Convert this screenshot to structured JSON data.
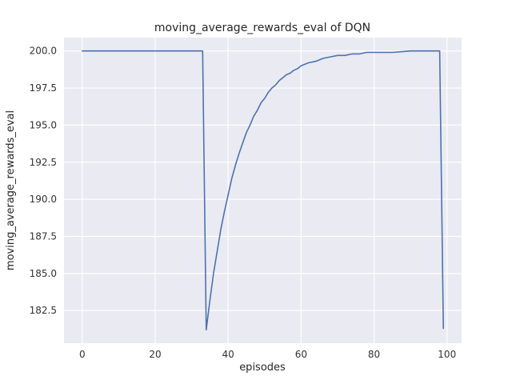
{
  "chart_data": {
    "type": "line",
    "title": "moving_average_rewards_eval of DQN",
    "xlabel": "episodes",
    "ylabel": "moving_average_rewards_eval",
    "xlim": [
      -5,
      104
    ],
    "ylim": [
      180.3,
      200.9
    ],
    "xticks": [
      0,
      20,
      40,
      60,
      80,
      100
    ],
    "xticklabels": [
      "0",
      "20",
      "40",
      "60",
      "80",
      "100"
    ],
    "yticks": [
      182.5,
      185.0,
      187.5,
      190.0,
      192.5,
      195.0,
      197.5,
      200.0
    ],
    "yticklabels": [
      "182.5",
      "185.0",
      "187.5",
      "190.0",
      "192.5",
      "195.0",
      "197.5",
      "200.0"
    ],
    "grid": true,
    "legend": "none",
    "colors": {
      "line": "#4c72b0",
      "plot_background": "#eaeaf2",
      "figure_background": "#ffffff",
      "grid": "#ffffff",
      "text": "#262626"
    },
    "series": [
      {
        "name": "DQN",
        "points": [
          [
            0,
            200.0
          ],
          [
            33,
            200.0
          ],
          [
            34,
            181.2
          ],
          [
            35,
            183.2
          ],
          [
            36,
            185.0
          ],
          [
            37,
            186.5
          ],
          [
            38,
            188.0
          ],
          [
            39,
            189.2
          ],
          [
            40,
            190.3
          ],
          [
            41,
            191.4
          ],
          [
            42,
            192.3
          ],
          [
            43,
            193.1
          ],
          [
            44,
            193.8
          ],
          [
            45,
            194.5
          ],
          [
            46,
            195.0
          ],
          [
            47,
            195.6
          ],
          [
            48,
            196.0
          ],
          [
            49,
            196.5
          ],
          [
            50,
            196.8
          ],
          [
            51,
            197.2
          ],
          [
            52,
            197.5
          ],
          [
            53,
            197.7
          ],
          [
            54,
            198.0
          ],
          [
            55,
            198.2
          ],
          [
            56,
            198.4
          ],
          [
            57,
            198.5
          ],
          [
            58,
            198.7
          ],
          [
            59,
            198.8
          ],
          [
            60,
            199.0
          ],
          [
            62,
            199.2
          ],
          [
            64,
            199.3
          ],
          [
            66,
            199.5
          ],
          [
            68,
            199.6
          ],
          [
            70,
            199.7
          ],
          [
            72,
            199.7
          ],
          [
            74,
            199.8
          ],
          [
            76,
            199.8
          ],
          [
            78,
            199.9
          ],
          [
            80,
            199.9
          ],
          [
            85,
            199.9
          ],
          [
            90,
            200.0
          ],
          [
            98,
            200.0
          ],
          [
            99,
            181.3
          ]
        ]
      }
    ]
  }
}
